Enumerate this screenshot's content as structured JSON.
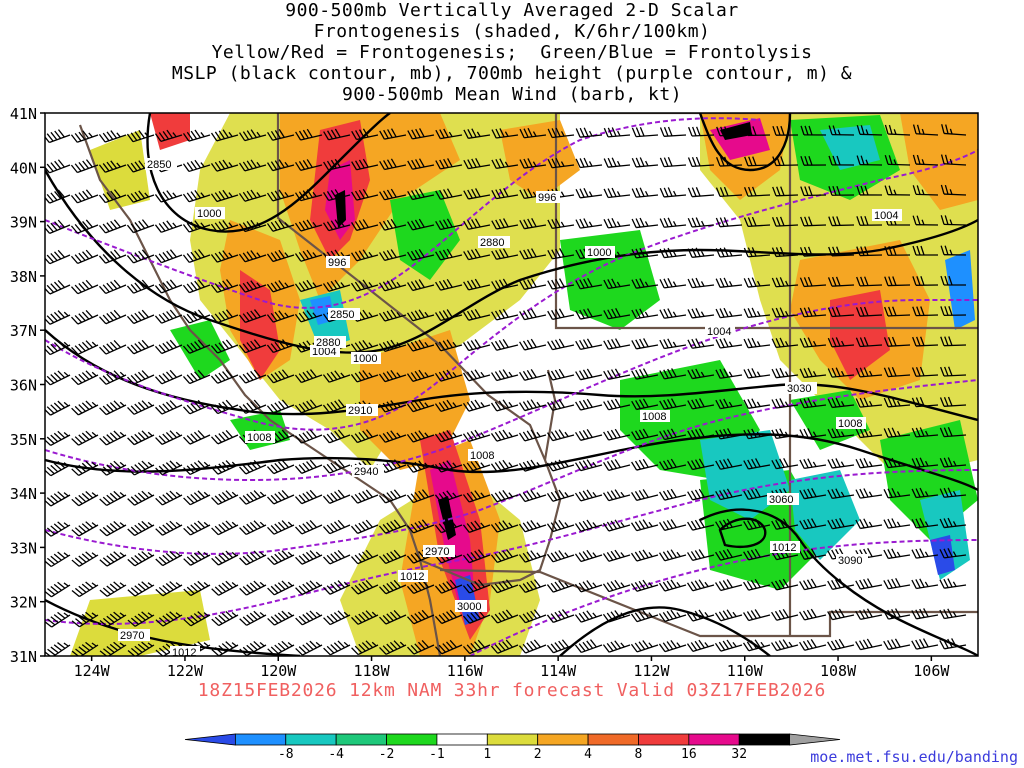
{
  "title_lines": [
    "900-500mb Vertically Averaged 2-D Scalar",
    "Frontogenesis (shaded, K/6hr/100km)",
    "Yellow/Red = Frontogenesis;  Green/Blue = Frontolysis",
    "MSLP (black contour, mb), 700mb height (purple contour, m) &",
    "900-500mb Mean Wind (barb, kt)"
  ],
  "forecast_text": "18Z15FEB2026 12km NAM 33hr forecast Valid 03Z17FEB2026",
  "source_url": "moe.met.fsu.edu/banding",
  "map_extent": {
    "lon": [
      -125,
      -105
    ],
    "lat": [
      31,
      41
    ]
  },
  "lat_labels": [
    "41N",
    "40N",
    "39N",
    "38N",
    "37N",
    "36N",
    "35N",
    "34N",
    "33N",
    "32N",
    "31N"
  ],
  "lon_labels": [
    "124W",
    "122W",
    "120W",
    "118W",
    "116W",
    "114W",
    "112W",
    "110W",
    "108W",
    "106W"
  ],
  "colorbar": {
    "labels": [
      "-8",
      "-4",
      "-2",
      "-1",
      "1",
      "2",
      "4",
      "8",
      "16",
      "32"
    ],
    "colors": [
      "#2a4be8",
      "#1e90ff",
      "#18c8c0",
      "#1ec87a",
      "#1ed81e",
      "#ffffff",
      "#dcdc3c",
      "#f5a623",
      "#f06a28",
      "#f03c3c",
      "#e60a8c",
      "#000000",
      "#a0a0a0"
    ]
  },
  "mslp_labels": [
    "996",
    "996",
    "1000",
    "1000",
    "1000",
    "1004",
    "1004",
    "1004",
    "1008",
    "1008",
    "1008",
    "1008",
    "1012",
    "1012",
    "1012"
  ],
  "height_labels": [
    "2850",
    "2850",
    "2880",
    "2880",
    "2910",
    "2940",
    "2970",
    "2970",
    "3000",
    "3030",
    "3060",
    "3090"
  ],
  "colors": {
    "mslp": "#000000",
    "height": "#9a1ad0",
    "borders": "#6b5448",
    "barbs": "#000000"
  }
}
